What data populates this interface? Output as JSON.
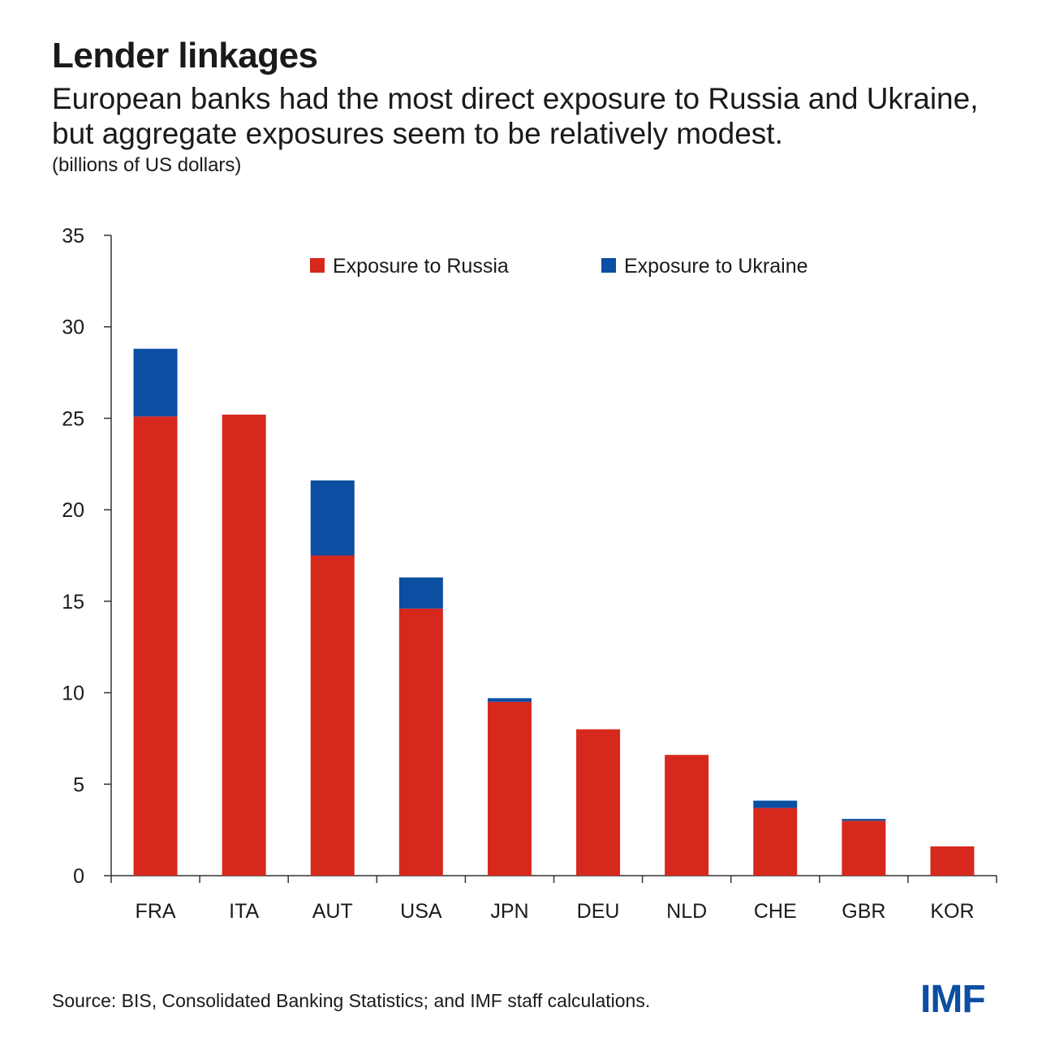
{
  "header": {
    "title": "Lender linkages",
    "subtitle": "European banks had the most direct exposure to Russia and Ukraine, but aggregate exposures seem to be relatively modest.",
    "units": "(billions of US dollars)"
  },
  "footer": {
    "source": "Source: BIS, Consolidated Banking Statistics; and IMF staff calculations.",
    "logo_text": "IMF"
  },
  "colors": {
    "russia": "#d7281e",
    "ukraine": "#0b4ea2",
    "axis": "#333333",
    "logo": "#0b4ea2"
  },
  "chart_data": {
    "type": "bar",
    "stacked": true,
    "categories": [
      "FRA",
      "ITA",
      "AUT",
      "USA",
      "JPN",
      "DEU",
      "NLD",
      "CHE",
      "GBR",
      "KOR"
    ],
    "series": [
      {
        "name": "Exposure to Russia",
        "color": "#d7281e",
        "values": [
          25.1,
          25.2,
          17.5,
          14.6,
          9.5,
          8.0,
          6.6,
          3.7,
          3.0,
          1.6
        ]
      },
      {
        "name": "Exposure to Ukraine",
        "color": "#0b4ea2",
        "values": [
          3.7,
          0.0,
          4.1,
          1.7,
          0.2,
          0.0,
          0.0,
          0.4,
          0.1,
          0.0
        ]
      }
    ],
    "title": "Lender linkages",
    "ylabel": "",
    "xlabel": "",
    "ylim": [
      0,
      35
    ],
    "yticks": [
      0,
      5,
      10,
      15,
      20,
      25,
      30,
      35
    ],
    "grid": false,
    "legend_position": "top-center"
  }
}
